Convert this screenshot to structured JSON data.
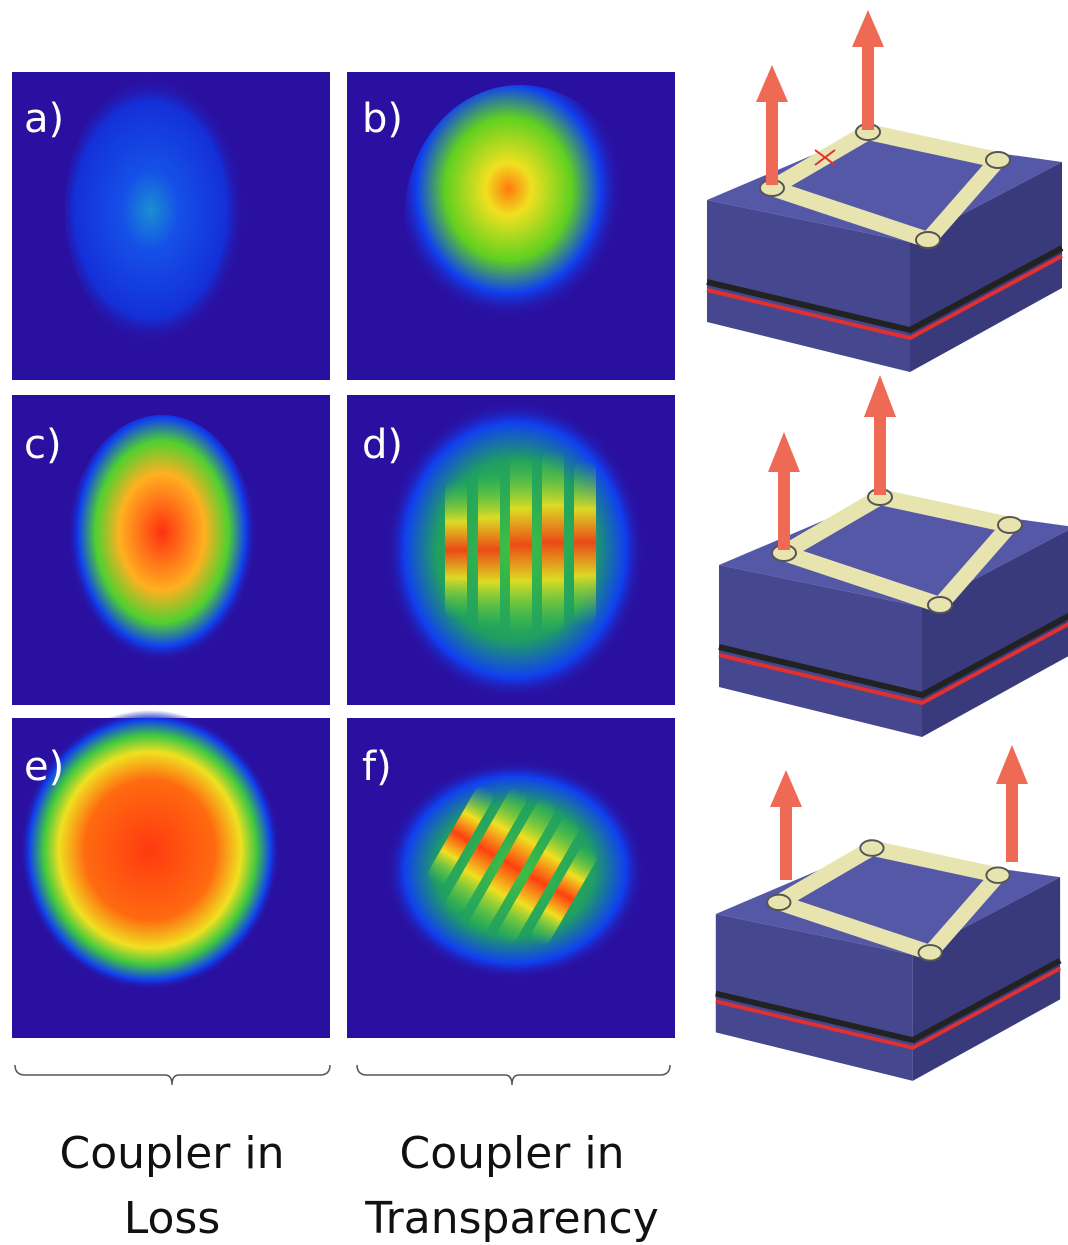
{
  "panels": [
    {
      "label": "a)"
    },
    {
      "label": "b)"
    },
    {
      "label": "c)"
    },
    {
      "label": "d)"
    },
    {
      "label": "e)"
    },
    {
      "label": "f)"
    }
  ],
  "captions": [
    {
      "lines": [
        "Coupler in",
        "Loss"
      ]
    },
    {
      "lines": [
        "Coupler in",
        "Transparency"
      ]
    }
  ]
}
